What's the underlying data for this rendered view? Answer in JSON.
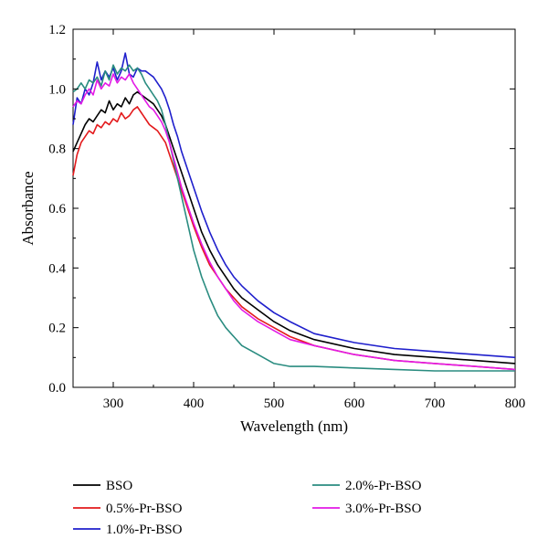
{
  "chart_data": {
    "type": "line",
    "xlabel": "Wavelength (nm)",
    "ylabel": "Absorbance",
    "xlim": [
      250,
      800
    ],
    "ylim": [
      0.0,
      1.2
    ],
    "x_ticks": [
      300,
      400,
      500,
      600,
      700,
      800
    ],
    "y_ticks": [
      0.0,
      0.2,
      0.4,
      0.6,
      0.8,
      1.0,
      1.2
    ],
    "x_tick_labels": [
      "300",
      "400",
      "500",
      "600",
      "700",
      "800"
    ],
    "y_tick_labels": [
      "0.0",
      "0.2",
      "0.4",
      "0.6",
      "0.8",
      "1.0",
      "1.2"
    ],
    "grid": false,
    "legend_position": "bottom",
    "series": [
      {
        "name": "BSO",
        "color": "#000000",
        "x": [
          250,
          255,
          260,
          265,
          270,
          275,
          280,
          285,
          290,
          295,
          300,
          305,
          310,
          315,
          320,
          325,
          330,
          335,
          340,
          345,
          350,
          355,
          360,
          365,
          370,
          375,
          380,
          385,
          390,
          395,
          400,
          410,
          420,
          430,
          440,
          450,
          460,
          480,
          500,
          520,
          550,
          600,
          650,
          700,
          750,
          800
        ],
        "y": [
          0.79,
          0.82,
          0.85,
          0.88,
          0.9,
          0.89,
          0.91,
          0.93,
          0.92,
          0.96,
          0.93,
          0.95,
          0.94,
          0.97,
          0.95,
          0.98,
          0.99,
          0.98,
          0.97,
          0.96,
          0.95,
          0.93,
          0.91,
          0.88,
          0.84,
          0.8,
          0.76,
          0.72,
          0.68,
          0.64,
          0.6,
          0.52,
          0.46,
          0.41,
          0.37,
          0.33,
          0.3,
          0.26,
          0.22,
          0.19,
          0.16,
          0.13,
          0.11,
          0.1,
          0.09,
          0.08
        ]
      },
      {
        "name": "0.5%-Pr-BSO",
        "color": "#e31a1c",
        "x": [
          250,
          255,
          260,
          265,
          270,
          275,
          280,
          285,
          290,
          295,
          300,
          305,
          310,
          315,
          320,
          325,
          330,
          335,
          340,
          345,
          350,
          355,
          360,
          365,
          370,
          375,
          380,
          385,
          390,
          395,
          400,
          410,
          420,
          430,
          440,
          450,
          460,
          480,
          500,
          520,
          550,
          600,
          650,
          700,
          750,
          800
        ],
        "y": [
          0.71,
          0.78,
          0.82,
          0.84,
          0.86,
          0.85,
          0.88,
          0.87,
          0.89,
          0.88,
          0.9,
          0.89,
          0.92,
          0.9,
          0.91,
          0.93,
          0.94,
          0.92,
          0.9,
          0.88,
          0.87,
          0.86,
          0.84,
          0.82,
          0.78,
          0.74,
          0.7,
          0.66,
          0.62,
          0.58,
          0.54,
          0.47,
          0.41,
          0.37,
          0.33,
          0.3,
          0.27,
          0.23,
          0.2,
          0.17,
          0.14,
          0.11,
          0.09,
          0.08,
          0.07,
          0.06
        ]
      },
      {
        "name": "1.0%-Pr-BSO",
        "color": "#1f1fcc",
        "x": [
          250,
          255,
          260,
          265,
          270,
          275,
          280,
          285,
          290,
          295,
          300,
          305,
          310,
          315,
          320,
          325,
          330,
          335,
          340,
          345,
          350,
          355,
          360,
          365,
          370,
          375,
          380,
          385,
          390,
          395,
          400,
          410,
          420,
          430,
          440,
          450,
          460,
          480,
          500,
          520,
          550,
          600,
          650,
          700,
          750,
          800
        ],
        "y": [
          0.88,
          0.97,
          0.95,
          1.0,
          0.98,
          1.02,
          1.09,
          1.03,
          1.06,
          1.04,
          1.07,
          1.03,
          1.06,
          1.12,
          1.05,
          1.04,
          1.07,
          1.06,
          1.06,
          1.05,
          1.04,
          1.02,
          1.0,
          0.97,
          0.93,
          0.88,
          0.84,
          0.79,
          0.75,
          0.71,
          0.67,
          0.59,
          0.52,
          0.46,
          0.41,
          0.37,
          0.34,
          0.29,
          0.25,
          0.22,
          0.18,
          0.15,
          0.13,
          0.12,
          0.11,
          0.1
        ]
      },
      {
        "name": "2.0%-Pr-BSO",
        "color": "#2a8c80",
        "x": [
          250,
          255,
          260,
          265,
          270,
          275,
          280,
          285,
          290,
          295,
          300,
          305,
          310,
          315,
          320,
          325,
          330,
          335,
          340,
          345,
          350,
          355,
          360,
          365,
          370,
          375,
          380,
          385,
          390,
          395,
          400,
          410,
          420,
          430,
          440,
          450,
          460,
          480,
          500,
          520,
          550,
          600,
          650,
          700,
          750,
          800
        ],
        "y": [
          0.99,
          1.0,
          1.02,
          1.0,
          1.03,
          1.02,
          1.04,
          1.01,
          1.06,
          1.03,
          1.08,
          1.05,
          1.07,
          1.06,
          1.08,
          1.06,
          1.07,
          1.05,
          1.02,
          1.0,
          0.98,
          0.96,
          0.93,
          0.88,
          0.82,
          0.76,
          0.7,
          0.64,
          0.58,
          0.52,
          0.46,
          0.37,
          0.3,
          0.24,
          0.2,
          0.17,
          0.14,
          0.11,
          0.08,
          0.07,
          0.07,
          0.065,
          0.06,
          0.055,
          0.055,
          0.055
        ]
      },
      {
        "name": "3.0%-Pr-BSO",
        "color": "#e31ae6",
        "x": [
          250,
          255,
          260,
          265,
          270,
          275,
          280,
          285,
          290,
          295,
          300,
          305,
          310,
          315,
          320,
          325,
          330,
          335,
          340,
          345,
          350,
          355,
          360,
          365,
          370,
          375,
          380,
          385,
          390,
          395,
          400,
          410,
          420,
          430,
          440,
          450,
          460,
          480,
          500,
          520,
          550,
          600,
          650,
          700,
          750,
          800
        ],
        "y": [
          0.94,
          0.96,
          0.95,
          0.98,
          1.0,
          0.98,
          1.03,
          1.0,
          1.02,
          1.01,
          1.05,
          1.02,
          1.04,
          1.03,
          1.05,
          1.02,
          1.0,
          0.98,
          0.96,
          0.94,
          0.93,
          0.91,
          0.89,
          0.86,
          0.82,
          0.77,
          0.72,
          0.67,
          0.63,
          0.59,
          0.55,
          0.48,
          0.42,
          0.37,
          0.33,
          0.29,
          0.26,
          0.22,
          0.19,
          0.16,
          0.14,
          0.11,
          0.09,
          0.08,
          0.07,
          0.06
        ]
      }
    ]
  }
}
